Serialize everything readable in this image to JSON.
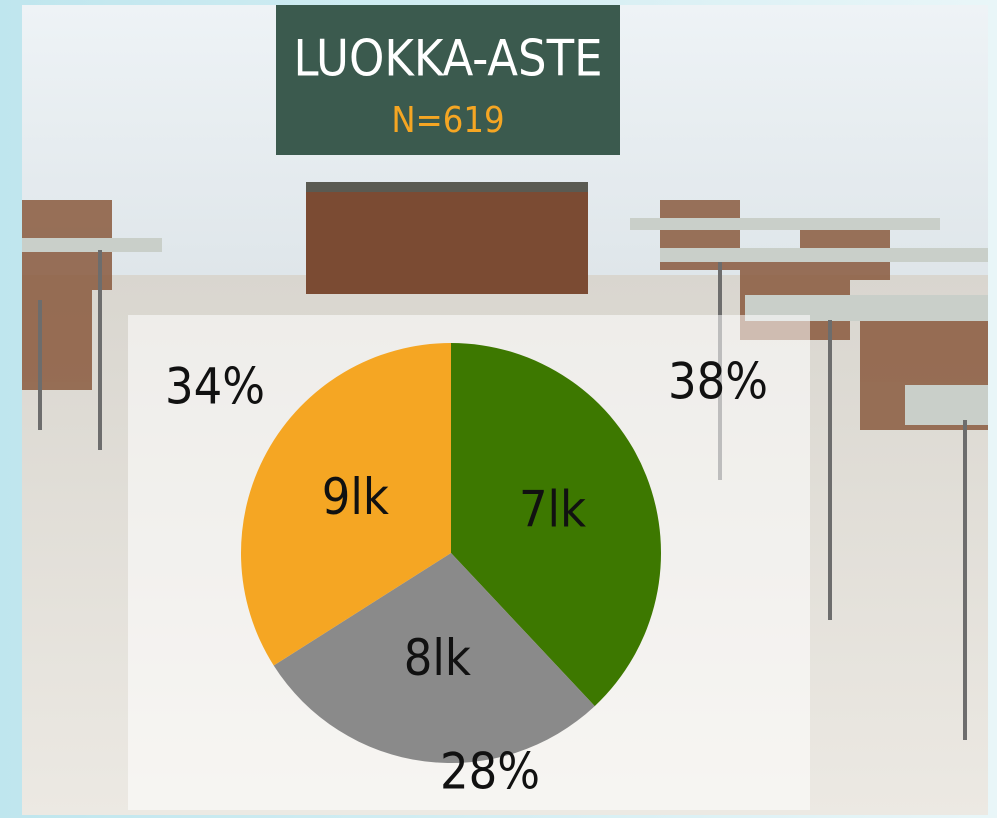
{
  "chart_data": {
    "type": "pie",
    "title": "LUOKKA-ASTE",
    "subtitle": "N=619",
    "categories": [
      "7lk",
      "8lk",
      "9lk"
    ],
    "values": [
      38,
      28,
      34
    ],
    "value_labels": [
      "38%",
      "28%",
      "34%"
    ],
    "colors": [
      "#3d7800",
      "#8a8a8a",
      "#f5a623"
    ]
  }
}
